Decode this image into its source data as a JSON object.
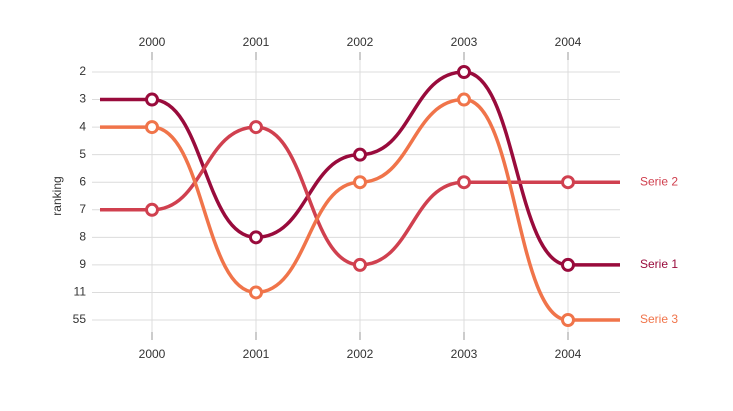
{
  "chart_data": {
    "type": "bump",
    "y_label": "ranking",
    "categories": [
      "2000",
      "2001",
      "2002",
      "2003",
      "2004"
    ],
    "yticks": [
      2,
      3,
      4,
      5,
      6,
      7,
      8,
      9,
      11,
      55
    ],
    "grid": true,
    "series": [
      {
        "name": "Serie 1",
        "color": "#990b3c",
        "values": [
          3,
          8,
          5,
          2,
          9
        ]
      },
      {
        "name": "Serie 2",
        "color": "#d0404f",
        "values": [
          7,
          4,
          9,
          6,
          6
        ]
      },
      {
        "name": "Serie 3",
        "color": "#f0744a",
        "values": [
          4,
          11,
          6,
          3,
          55
        ]
      }
    ]
  }
}
